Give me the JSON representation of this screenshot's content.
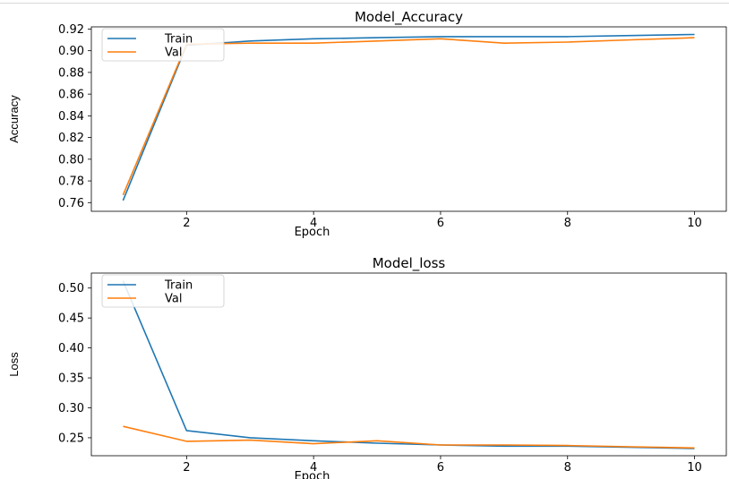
{
  "chart_data": [
    {
      "type": "line",
      "title": "Model_Accuracy",
      "xlabel": "Epoch",
      "ylabel": "Accuracy",
      "x": [
        1,
        2,
        3,
        4,
        5,
        6,
        7,
        8,
        9,
        10
      ],
      "xlim": [
        0.5,
        10.5
      ],
      "ylim": [
        0.752,
        0.922
      ],
      "xticks": [
        2,
        4,
        6,
        8,
        10
      ],
      "yticks": [
        0.76,
        0.78,
        0.8,
        0.82,
        0.84,
        0.86,
        0.88,
        0.9,
        0.92
      ],
      "ytick_labels": [
        "0.76",
        "0.78",
        "0.80",
        "0.82",
        "0.84",
        "0.86",
        "0.88",
        "0.90",
        "0.92"
      ],
      "grid": false,
      "legend_position": "upper-left",
      "series": [
        {
          "name": "Train",
          "color": "#1f77b4",
          "values": [
            0.762,
            0.905,
            0.909,
            0.911,
            0.912,
            0.913,
            0.913,
            0.913,
            0.914,
            0.915
          ]
        },
        {
          "name": "Val",
          "color": "#ff7f0e",
          "values": [
            0.767,
            0.906,
            0.907,
            0.907,
            0.909,
            0.911,
            0.907,
            0.908,
            0.91,
            0.912
          ]
        }
      ]
    },
    {
      "type": "line",
      "title": "Model_loss",
      "xlabel": "Epoch",
      "ylabel": "Loss",
      "x": [
        1,
        2,
        3,
        4,
        5,
        6,
        7,
        8,
        9,
        10
      ],
      "xlim": [
        0.5,
        10.5
      ],
      "ylim": [
        0.22,
        0.525
      ],
      "xticks": [
        2,
        4,
        6,
        8,
        10
      ],
      "yticks": [
        0.25,
        0.3,
        0.35,
        0.4,
        0.45,
        0.5
      ],
      "ytick_labels": [
        "0.25",
        "0.30",
        "0.35",
        "0.40",
        "0.45",
        "0.50"
      ],
      "grid": false,
      "legend_position": "upper-left",
      "series": [
        {
          "name": "Train",
          "color": "#1f77b4",
          "values": [
            0.512,
            0.262,
            0.25,
            0.245,
            0.241,
            0.238,
            0.236,
            0.236,
            0.234,
            0.232
          ]
        },
        {
          "name": "Val",
          "color": "#ff7f0e",
          "values": [
            0.269,
            0.244,
            0.246,
            0.24,
            0.245,
            0.238,
            0.238,
            0.237,
            0.235,
            0.233
          ]
        }
      ]
    }
  ]
}
